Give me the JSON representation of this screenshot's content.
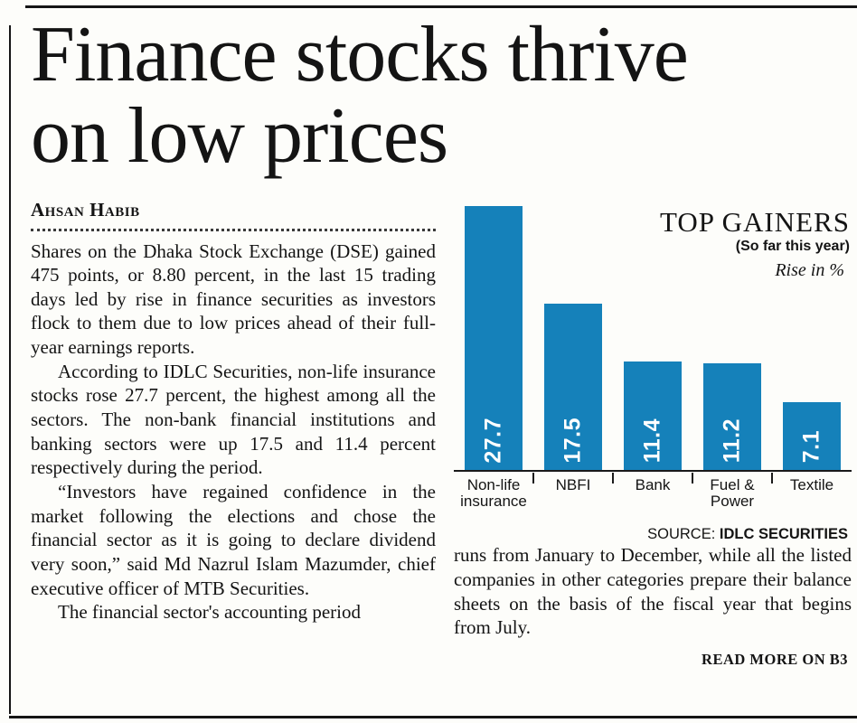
{
  "article": {
    "headline_line1": "Finance stocks thrive",
    "headline_line2": "on low prices",
    "byline": "Ahsan Habib",
    "paragraphs": [
      "Shares on the Dhaka Stock Exchange (DSE) gained 475 points, or 8.80 percent, in the last 15 trading days led by rise in finance securities as investors flock to them due to low prices ahead of their full-year earnings reports.",
      "According to IDLC Securities, non-life insurance stocks rose 27.7 percent, the highest among all the sectors. The non-bank financial institutions and banking sectors were up 17.5 and 11.4 percent respectively during the period.",
      "“Investors have regained confidence in the market following the elections and chose the financial sector as it is going to declare dividend very soon,” said Md Nazrul Islam Mazumder, chief executive officer of MTB Securities.",
      "The financial sector's accounting period"
    ],
    "continuation": "runs from January to December, while all the listed companies in other categories prepare their balance sheets on the basis of the fiscal year that begins from July.",
    "read_more": "READ MORE ON B3"
  },
  "chart": {
    "source_label": "SOURCE:",
    "source_value": "IDLC SECURITIES"
  },
  "chart_data": {
    "type": "bar",
    "title": "TOP GAINERS",
    "subtitle": "(So far this year)",
    "unit_label": "Rise in %",
    "categories": [
      "Non-life insurance",
      "NBFI",
      "Bank",
      "Fuel & Power",
      "Textile"
    ],
    "values": [
      27.7,
      17.5,
      11.4,
      11.2,
      7.1
    ],
    "ylim": [
      0,
      28
    ],
    "grid": false,
    "legend_position": "none",
    "bar_color": "#1581ba",
    "value_label_color": "#ffffff",
    "source": "SOURCE: IDLC SECURITIES"
  }
}
